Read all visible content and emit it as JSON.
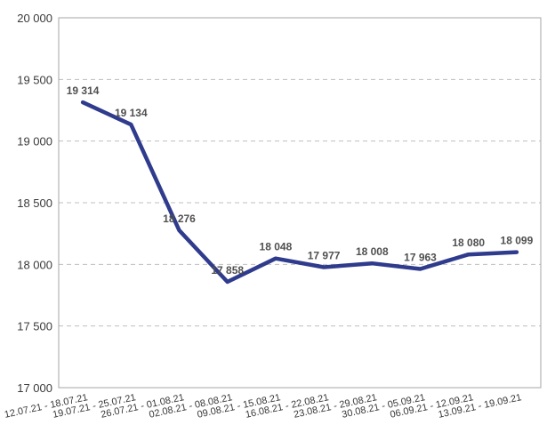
{
  "chart_data": {
    "type": "line",
    "categories": [
      "12.07.21 - 18.07.21",
      "19.07.21 - 25.07.21",
      "26.07.21 - 01.08.21",
      "02.08.21 - 08.08.21",
      "09.08.21 - 15.08.21",
      "16.08.21 - 22.08.21",
      "23.08.21 - 29.08.21",
      "30.08.21 - 05.09.21",
      "06.09.21 - 12.09.21",
      "13.09.21 - 19.09.21"
    ],
    "series": [
      {
        "values": [
          19314,
          19134,
          18276,
          17858,
          18048,
          17977,
          18008,
          17963,
          18080,
          18099
        ],
        "labels": [
          "19 314",
          "19 134",
          "18 276",
          "17 858",
          "18 048",
          "17 977",
          "18 008",
          "17 963",
          "18 080",
          "18 099"
        ],
        "color": "#2f3b8c"
      }
    ],
    "y_ticks": [
      17000,
      17500,
      18000,
      18500,
      19000,
      19500,
      20000
    ],
    "y_tick_labels": [
      "17 000",
      "17 500",
      "18 000",
      "18 500",
      "19 000",
      "19 500",
      "20 000"
    ],
    "ylim": [
      17000,
      20000
    ],
    "grid": "horizontal-dashed",
    "gridColor": "#bfbfbf",
    "axisColor": "#a6a6a6",
    "legend": "none"
  }
}
